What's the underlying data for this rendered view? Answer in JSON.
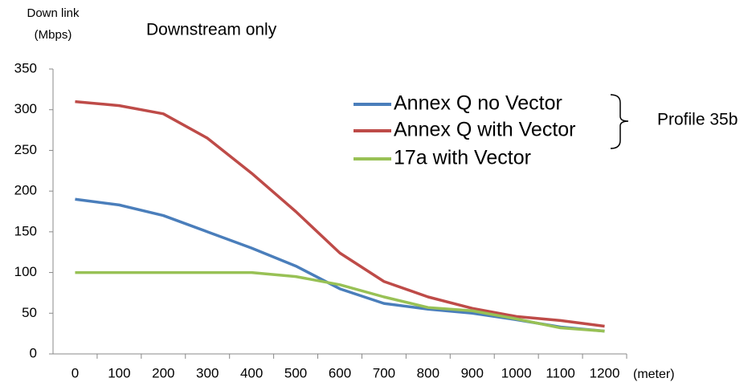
{
  "chart_data": {
    "type": "line",
    "title": "Downstream only",
    "y_label": [
      "Down link",
      "(Mbps)"
    ],
    "x_unit": "(meter)",
    "annotation": "Profile 35b",
    "categories": [
      "0",
      "100",
      "200",
      "300",
      "400",
      "500",
      "600",
      "700",
      "800",
      "900",
      "1000",
      "1100",
      "1200"
    ],
    "series": [
      {
        "name": "Annex Q no Vector",
        "color": "#4a7ebb",
        "values": [
          190,
          183,
          170,
          150,
          130,
          108,
          80,
          62,
          55,
          50,
          42,
          33,
          28
        ]
      },
      {
        "name": "Annex Q with Vector",
        "color": "#be4b48",
        "values": [
          310,
          305,
          295,
          265,
          222,
          175,
          124,
          89,
          70,
          56,
          46,
          41,
          34
        ]
      },
      {
        "name": "17a with Vector",
        "color": "#98c155",
        "values": [
          100,
          100,
          100,
          100,
          100,
          95,
          85,
          70,
          57,
          53,
          43,
          32,
          28
        ]
      }
    ],
    "ylim": [
      0,
      350
    ],
    "yticks": [
      0,
      50,
      100,
      150,
      200,
      250,
      300,
      350
    ],
    "grid": false
  }
}
